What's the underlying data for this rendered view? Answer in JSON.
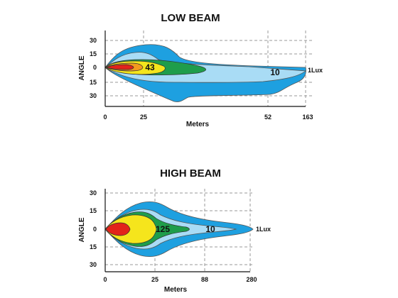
{
  "chart_data": [
    {
      "type": "isolux",
      "title": "LOW BEAM",
      "xlabel": "Meters",
      "ylabel": "ANGLE",
      "x_tick_labels": [
        "0",
        "25",
        "52",
        "163"
      ],
      "y_tick_labels": [
        "30",
        "15",
        "0",
        "15",
        "30"
      ],
      "y_values": [
        30,
        15,
        0,
        -15,
        -30
      ],
      "zones": [
        {
          "lux": "1Lux",
          "label": "1Lux",
          "color": "#1ea0e0",
          "reach_m": 163
        },
        {
          "lux": "10",
          "label": "10",
          "color": "#a9dcf5",
          "reach_m": 52
        },
        {
          "lux": "43",
          "label": "43",
          "color": "#1f9d4b",
          "reach_m": 25
        },
        {
          "lux": "yellow",
          "label": "",
          "color": "#f5e51c",
          "reach_m": 20
        },
        {
          "lux": "orange",
          "label": "",
          "color": "#f39a1e",
          "reach_m": 12
        },
        {
          "lux": "red",
          "label": "",
          "color": "#e2231a",
          "reach_m": 8
        }
      ]
    },
    {
      "type": "isolux",
      "title": "HIGH BEAM",
      "xlabel": "Meters",
      "ylabel": "ANGLE",
      "x_tick_labels": [
        "0",
        "25",
        "88",
        "280"
      ],
      "y_tick_labels": [
        "30",
        "15",
        "0",
        "15",
        "30"
      ],
      "y_values": [
        30,
        15,
        0,
        -15,
        -30
      ],
      "zones": [
        {
          "lux": "1Lux",
          "label": "1Lux",
          "color": "#1ea0e0",
          "reach_m": 280
        },
        {
          "lux": "10",
          "label": "10",
          "color": "#a9dcf5",
          "reach_m": 88
        },
        {
          "lux": "125",
          "label": "125",
          "color": "#1f9d4b",
          "reach_m": 25
        },
        {
          "lux": "yellow",
          "label": "",
          "color": "#f5e51c",
          "reach_m": 22
        },
        {
          "lux": "red",
          "label": "",
          "color": "#e2231a",
          "reach_m": 12
        }
      ]
    }
  ]
}
